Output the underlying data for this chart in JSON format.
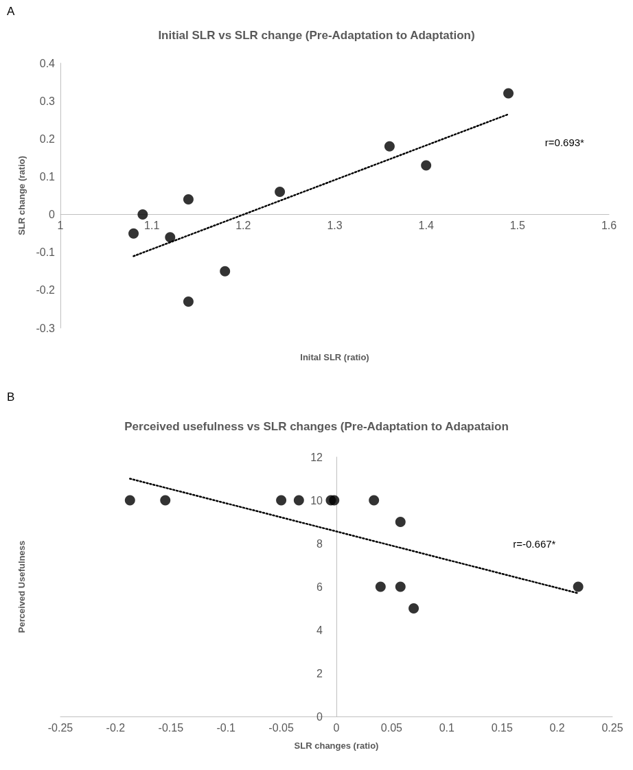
{
  "chart_data": [
    {
      "type": "scatter",
      "title": "Initial SLR vs SLR change (Pre-Adaptation to Adaptation)",
      "xlabel": "Inital SLR (ratio)",
      "ylabel": "SLR change (ratio)",
      "annotations": [
        "A",
        "r=0.693*"
      ],
      "xlim": [
        1,
        1.6
      ],
      "xticks": [
        1,
        1.1,
        1.2,
        1.3,
        1.4,
        1.5,
        1.6
      ],
      "ylim": [
        -0.3,
        0.4
      ],
      "yticks": [
        -0.3,
        -0.2,
        -0.1,
        0,
        0.1,
        0.2,
        0.3,
        0.4
      ],
      "grid": false,
      "marker": "circle",
      "series": [
        {
          "color": "#000000",
          "x": [
            1.08,
            1.09,
            1.12,
            1.14,
            1.14,
            1.18,
            1.24,
            1.36,
            1.4,
            1.49
          ],
          "values": [
            -0.05,
            0,
            -0.06,
            0.04,
            -0.23,
            -0.15,
            0.06,
            0.18,
            0.13,
            0.32
          ]
        },
        {
          "type": "line",
          "color": "#000000",
          "line_style": "dotted",
          "marker": "none",
          "x": [
            1.08,
            1.49
          ],
          "values": [
            -0.11,
            0.265
          ]
        }
      ]
    },
    {
      "type": "scatter",
      "title": "Perceived usefulness vs SLR changes (Pre-Adaptation to Adapataion",
      "xlabel": "SLR changes (ratio)",
      "ylabel": "Perceived Usefulness",
      "annotations": [
        "B",
        "r=-0.667*"
      ],
      "xlim": [
        -0.25,
        0.25
      ],
      "xticks": [
        -0.25,
        -0.2,
        -0.15,
        -0.1,
        -0.05,
        0,
        0.05,
        0.1,
        0.15,
        0.2,
        0.25
      ],
      "ylim": [
        0,
        12
      ],
      "yticks": [
        0,
        2,
        4,
        6,
        8,
        10,
        12
      ],
      "grid": false,
      "marker": "circle",
      "series": [
        {
          "color": "#000000",
          "x": [
            -0.187,
            -0.155,
            -0.05,
            -0.034,
            -0.005,
            -0.002,
            0.034,
            0.058,
            0.04,
            0.058,
            0.07,
            0.219
          ],
          "values": [
            10,
            10,
            10,
            10,
            10,
            10,
            10,
            9,
            6,
            6,
            5,
            6
          ]
        },
        {
          "type": "line",
          "color": "#000000",
          "line_style": "dotted",
          "marker": "none",
          "x": [
            -0.187,
            0.219
          ],
          "values": [
            11,
            5.7
          ]
        }
      ]
    }
  ]
}
